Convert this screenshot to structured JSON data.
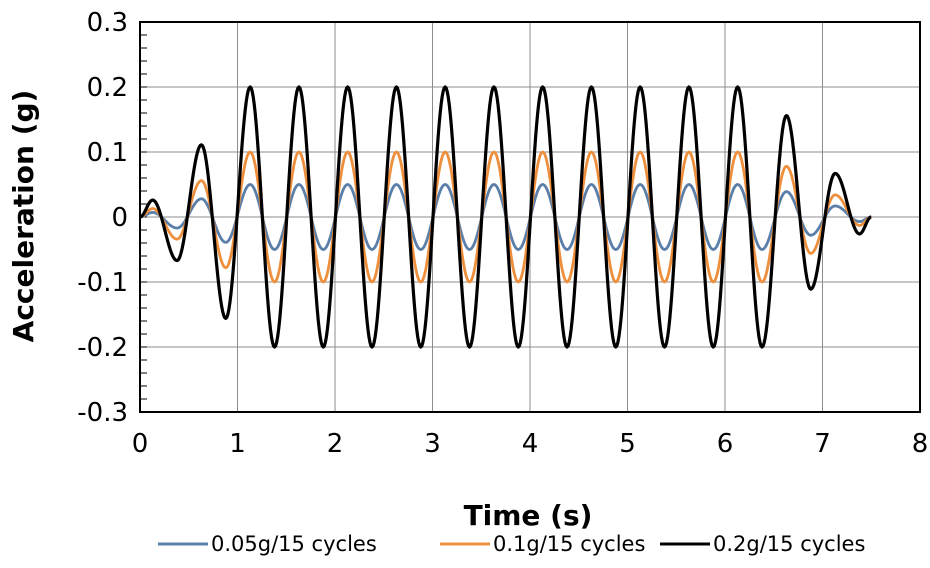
{
  "chart_data": {
    "type": "line",
    "xlabel": "Time (s)",
    "ylabel": "Acceleration (g)",
    "xlim": [
      0,
      8
    ],
    "ylim": [
      -0.3,
      0.3
    ],
    "x_ticks": [
      "0",
      "1",
      "2",
      "3",
      "4",
      "5",
      "6",
      "7",
      "8"
    ],
    "y_ticks": [
      "0.3",
      "0.2",
      "0.1",
      "0",
      "-0.1",
      "-0.2",
      "-0.3"
    ],
    "grid": true,
    "legend_position": "bottom",
    "signal": {
      "frequency_hz": 2,
      "duration_s": 7.5,
      "ramp_up_s": [
        0,
        1
      ],
      "full_amplitude_s": [
        1,
        6.5
      ],
      "ramp_down_s": [
        6.5,
        7.5
      ],
      "peak_times_s": [
        0.13,
        0.63,
        1.13,
        1.63,
        2.13,
        2.63,
        3.13,
        3.63,
        4.13,
        4.63,
        5.13,
        5.63,
        6.13,
        6.63,
        7.13
      ],
      "trough_times_s": [
        0.38,
        0.88,
        1.38,
        1.88,
        2.38,
        2.88,
        3.38,
        3.88,
        4.38,
        4.88,
        5.38,
        5.88,
        6.38,
        6.88,
        7.38
      ]
    },
    "series": [
      {
        "name": "0.05g/15 cycles",
        "color": "#5b7fa8",
        "amplitude": 0.05,
        "peaks": [
          0.007,
          0.028,
          0.05,
          0.05,
          0.05,
          0.05,
          0.05,
          0.05,
          0.05,
          0.05,
          0.05,
          0.05,
          0.05,
          0.039,
          0.017
        ],
        "troughs": [
          -0.017,
          -0.039,
          -0.05,
          -0.05,
          -0.05,
          -0.05,
          -0.05,
          -0.05,
          -0.05,
          -0.05,
          -0.05,
          -0.05,
          -0.05,
          -0.028,
          -0.007
        ]
      },
      {
        "name": "0.1g/15 cycles",
        "color": "#ed8f3c",
        "amplitude": 0.1,
        "peaks": [
          0.013,
          0.056,
          0.1,
          0.1,
          0.1,
          0.1,
          0.1,
          0.1,
          0.1,
          0.1,
          0.1,
          0.1,
          0.1,
          0.078,
          0.034
        ],
        "troughs": [
          -0.034,
          -0.078,
          -0.1,
          -0.1,
          -0.1,
          -0.1,
          -0.1,
          -0.1,
          -0.1,
          -0.1,
          -0.1,
          -0.1,
          -0.1,
          -0.056,
          -0.013
        ]
      },
      {
        "name": "0.2g/15 cycles",
        "color": "#000000",
        "amplitude": 0.2,
        "peaks": [
          0.026,
          0.111,
          0.2,
          0.2,
          0.2,
          0.2,
          0.2,
          0.2,
          0.2,
          0.2,
          0.2,
          0.2,
          0.2,
          0.156,
          0.067
        ],
        "troughs": [
          -0.067,
          -0.156,
          -0.2,
          -0.2,
          -0.2,
          -0.2,
          -0.2,
          -0.2,
          -0.2,
          -0.2,
          -0.2,
          -0.2,
          -0.2,
          -0.111,
          -0.026
        ]
      }
    ]
  }
}
